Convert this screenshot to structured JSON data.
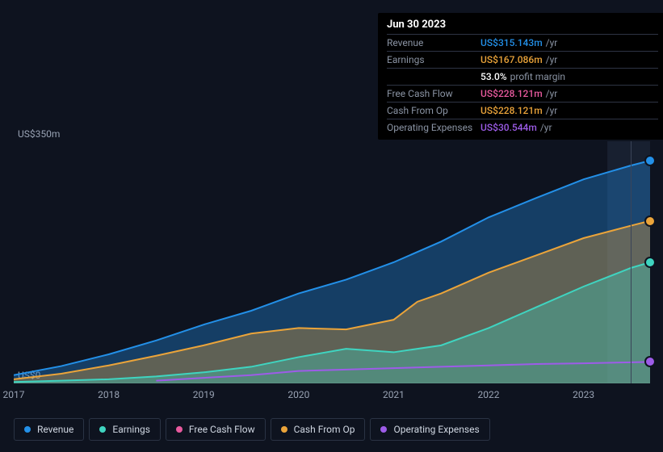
{
  "background_color": "#0e131f",
  "chart": {
    "type": "area",
    "x_years": [
      2017,
      2018,
      2019,
      2020,
      2021,
      2022,
      2023
    ],
    "xlim": [
      2017,
      2023.7
    ],
    "ylim": [
      0,
      350
    ],
    "y_ticks": [
      0,
      350
    ],
    "y_tick_labels": [
      "US$0",
      "US$350m"
    ],
    "grid_color": "none",
    "area_opacity": 0.35,
    "line_width": 2,
    "hover_x": 2023.5,
    "future_shade_start_x": 2023.25,
    "future_shade_color": "rgba(90,110,150,0.15)",
    "series": [
      {
        "id": "revenue",
        "label": "Revenue",
        "color": "#2390e8",
        "fill": true,
        "points": [
          [
            2017,
            12
          ],
          [
            2017.5,
            25
          ],
          [
            2018,
            42
          ],
          [
            2018.5,
            62
          ],
          [
            2019,
            85
          ],
          [
            2019.5,
            105
          ],
          [
            2020,
            130
          ],
          [
            2020.5,
            150
          ],
          [
            2021,
            175
          ],
          [
            2021.5,
            205
          ],
          [
            2022,
            240
          ],
          [
            2022.5,
            268
          ],
          [
            2023,
            295
          ],
          [
            2023.5,
            315
          ],
          [
            2023.7,
            322
          ]
        ]
      },
      {
        "id": "cash_from_op",
        "label": "Cash From Op",
        "color": "#eba43a",
        "fill": true,
        "points": [
          [
            2017,
            6
          ],
          [
            2017.5,
            14
          ],
          [
            2018,
            26
          ],
          [
            2018.5,
            40
          ],
          [
            2019,
            55
          ],
          [
            2019.5,
            72
          ],
          [
            2020,
            80
          ],
          [
            2020.5,
            78
          ],
          [
            2021,
            92
          ],
          [
            2021.25,
            118
          ],
          [
            2021.5,
            130
          ],
          [
            2022,
            160
          ],
          [
            2022.5,
            185
          ],
          [
            2023,
            210
          ],
          [
            2023.5,
            228
          ],
          [
            2023.7,
            235
          ]
        ]
      },
      {
        "id": "earnings",
        "label": "Earnings",
        "color": "#3fd4c0",
        "fill": true,
        "points": [
          [
            2017,
            2
          ],
          [
            2017.5,
            4
          ],
          [
            2018,
            6
          ],
          [
            2018.5,
            10
          ],
          [
            2019,
            16
          ],
          [
            2019.5,
            24
          ],
          [
            2020,
            38
          ],
          [
            2020.5,
            50
          ],
          [
            2021,
            45
          ],
          [
            2021.5,
            55
          ],
          [
            2022,
            80
          ],
          [
            2022.5,
            110
          ],
          [
            2023,
            140
          ],
          [
            2023.5,
            167
          ],
          [
            2023.7,
            175
          ]
        ]
      },
      {
        "id": "opex",
        "label": "Operating Expenses",
        "color": "#9d5ce8",
        "fill": false,
        "points": [
          [
            2018.5,
            4
          ],
          [
            2019,
            8
          ],
          [
            2019.5,
            12
          ],
          [
            2020,
            18
          ],
          [
            2020.5,
            20
          ],
          [
            2021,
            22
          ],
          [
            2021.5,
            24
          ],
          [
            2022,
            26
          ],
          [
            2022.5,
            28
          ],
          [
            2023,
            29
          ],
          [
            2023.5,
            30.5
          ],
          [
            2023.7,
            31
          ]
        ]
      },
      {
        "id": "fcf",
        "label": "Free Cash Flow",
        "color": "#e85a9e",
        "fill": false,
        "points": []
      }
    ],
    "end_markers": [
      {
        "series": "revenue",
        "x": 2023.7,
        "y": 322
      },
      {
        "series": "cash_from_op",
        "x": 2023.7,
        "y": 235
      },
      {
        "series": "earnings",
        "x": 2023.7,
        "y": 175
      },
      {
        "series": "opex",
        "x": 2023.7,
        "y": 31
      }
    ]
  },
  "legend": {
    "items": [
      {
        "id": "revenue",
        "label": "Revenue",
        "color": "#2390e8"
      },
      {
        "id": "earnings",
        "label": "Earnings",
        "color": "#3fd4c0"
      },
      {
        "id": "fcf",
        "label": "Free Cash Flow",
        "color": "#e85a9e"
      },
      {
        "id": "cash_from_op",
        "label": "Cash From Op",
        "color": "#eba43a"
      },
      {
        "id": "opex",
        "label": "Operating Expenses",
        "color": "#9d5ce8"
      }
    ]
  },
  "tooltip": {
    "title": "Jun 30 2023",
    "rows": [
      {
        "label": "Revenue",
        "value": "US$315.143m",
        "unit": "/yr",
        "color": "#2390e8"
      },
      {
        "label": "Earnings",
        "value": "US$167.086m",
        "unit": "/yr",
        "color": "#eba43a"
      },
      {
        "label": "",
        "value": "53.0%",
        "unit": "profit margin",
        "color": "#ffffff"
      },
      {
        "label": "Free Cash Flow",
        "value": "US$228.121m",
        "unit": "/yr",
        "color": "#e85a9e"
      },
      {
        "label": "Cash From Op",
        "value": "US$228.121m",
        "unit": "/yr",
        "color": "#eba43a"
      },
      {
        "label": "Operating Expenses",
        "value": "US$30.544m",
        "unit": "/yr",
        "color": "#9d5ce8"
      }
    ]
  },
  "y_label_top": "US$350m",
  "y_label_bottom": "US$0"
}
